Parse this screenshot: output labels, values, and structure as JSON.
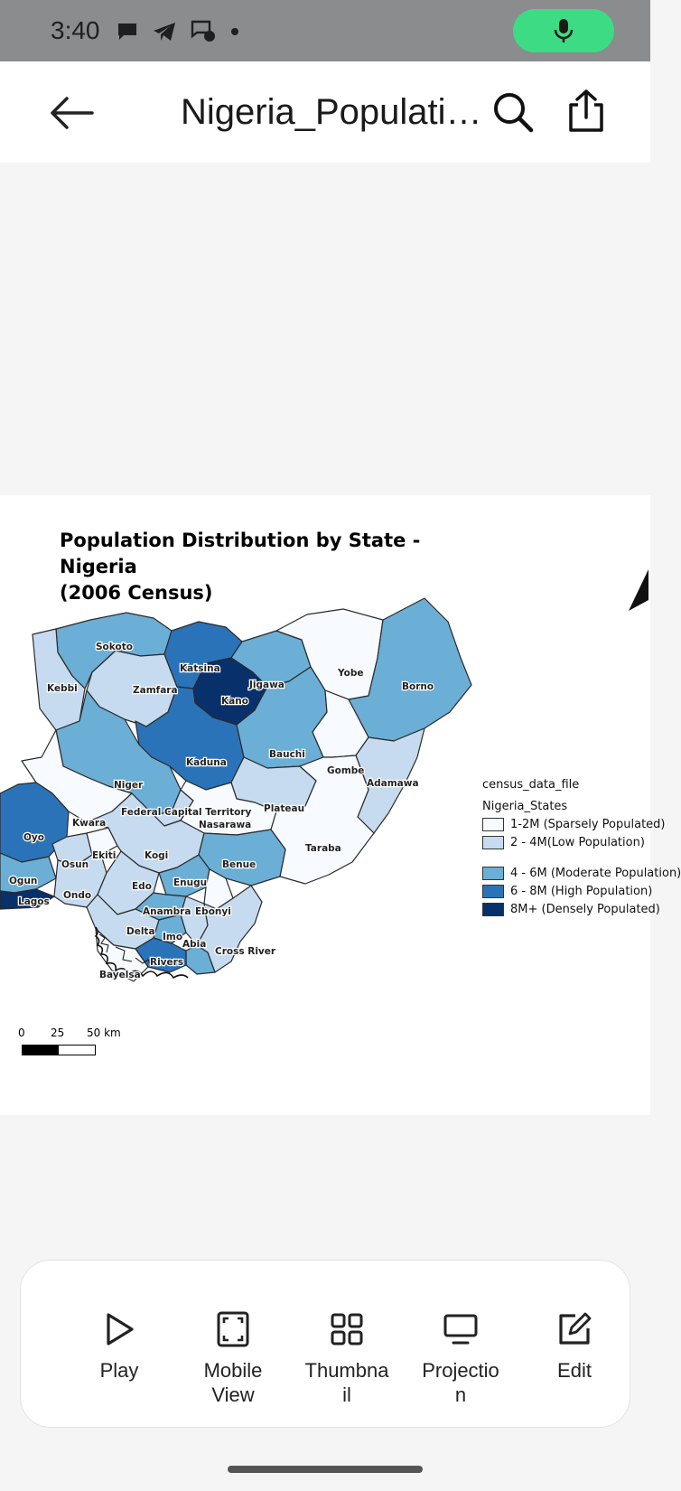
{
  "status": {
    "time": "3:40"
  },
  "app_bar": {
    "title": "Nigeria_Populati…"
  },
  "map": {
    "title_line1": "Population Distribution by State - Nigeria",
    "title_line2": "(2006 Census)",
    "states": {
      "sokoto": "Sokoto",
      "kebbi": "Kebbi",
      "zamfara": "Zamfara",
      "katsina": "Katsina",
      "kano": "Kano",
      "jigawa": "Jigawa",
      "yobe": "Yobe",
      "borno": "Borno",
      "kaduna": "Kaduna",
      "bauchi": "Bauchi",
      "gombe": "Gombe",
      "adamawa": "Adamawa",
      "niger": "Niger",
      "fct": "Federal Capital Territory",
      "nasarawa": "Nasarawa",
      "plateau": "Plateau",
      "kwara": "Kwara",
      "oyo": "Oyo",
      "taraba": "Taraba",
      "osun": "Osun",
      "ekiti": "Ekiti",
      "kogi": "Kogi",
      "benue": "Benue",
      "ogun": "Ogun",
      "edo": "Edo",
      "enugu": "Enugu",
      "lagos": "Lagos",
      "ondo": "Ondo",
      "anambra": "Anambra",
      "ebonyi": "Ebonyi",
      "delta": "Delta",
      "imo": "Imo",
      "abia": "Abia",
      "cross_river": "Cross River",
      "rivers": "Rivers",
      "bayelsa": "Bayelsa"
    },
    "legend": {
      "layer": "census_data_file",
      "group": "Nigeria_States",
      "items": [
        {
          "label": "1-2M (Sparsely Populated)",
          "color": "#f7fbff"
        },
        {
          "label": "2 - 4M(Low Population)",
          "color": "#c6dbef"
        },
        {
          "label": "4 - 6M (Moderate Population)",
          "color": "#6baed6"
        },
        {
          "label": "6 - 8M (High Population)",
          "color": "#2b73b8"
        },
        {
          "label": "8M+ (Densely Populated)",
          "color": "#08306b"
        }
      ]
    },
    "scale": {
      "t0": "0",
      "t1": "25",
      "t2": "50 km"
    }
  },
  "toolbar": {
    "play": "Play",
    "mobile_l1": "Mobile",
    "mobile_l2": "View",
    "thumb_l1": "Thumbna",
    "thumb_l2": "il",
    "proj_l1": "Projectio",
    "proj_l2": "n",
    "edit": "Edit"
  },
  "colors": {
    "mic": "#3ddc84",
    "status_bar": "#8a8c8e"
  }
}
